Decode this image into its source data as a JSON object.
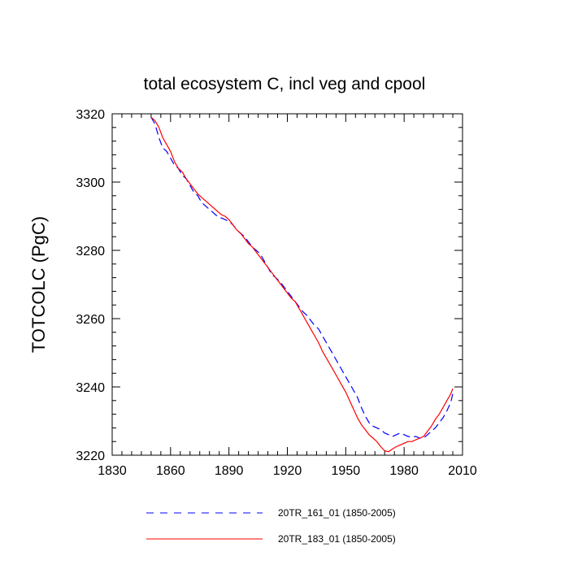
{
  "chart_data": {
    "type": "line",
    "title": "total ecosystem C, incl veg and cpool",
    "xlabel": "",
    "ylabel": "TOTCOLC  (PgC)",
    "xlim": [
      1830,
      2010
    ],
    "ylim": [
      3220,
      3320
    ],
    "xticks": [
      1830,
      1860,
      1890,
      1920,
      1950,
      1980,
      2010
    ],
    "xtick_labels": [
      "1830",
      "1860",
      "1890",
      "1920",
      "1950",
      "1980",
      "2010"
    ],
    "yticks": [
      3220,
      3240,
      3260,
      3280,
      3300,
      3320
    ],
    "ytick_labels": [
      "3220",
      "3240",
      "3260",
      "3280",
      "3300",
      "3320"
    ],
    "grid": false,
    "legend_position": "bottom",
    "series": [
      {
        "name": "20TR_161_01 (1850-2005)",
        "color": "#0000ff",
        "style": "dashed",
        "x": [
          1850,
          1852,
          1854,
          1856,
          1858,
          1860,
          1862,
          1864,
          1866,
          1868,
          1870,
          1872,
          1874,
          1876,
          1878,
          1880,
          1882,
          1884,
          1886,
          1888,
          1890,
          1892,
          1894,
          1896,
          1898,
          1900,
          1902,
          1904,
          1906,
          1908,
          1910,
          1912,
          1914,
          1916,
          1918,
          1920,
          1922,
          1924,
          1926,
          1928,
          1930,
          1932,
          1934,
          1936,
          1938,
          1940,
          1942,
          1944,
          1946,
          1948,
          1950,
          1952,
          1954,
          1956,
          1958,
          1960,
          1962,
          1964,
          1966,
          1968,
          1970,
          1972,
          1974,
          1976,
          1978,
          1980,
          1982,
          1984,
          1986,
          1988,
          1990,
          1992,
          1994,
          1996,
          1998,
          2000,
          2002,
          2004,
          2005
        ],
        "y": [
          3319,
          3317,
          3313,
          3310,
          3309,
          3307,
          3305,
          3304,
          3302,
          3301,
          3299,
          3297,
          3296,
          3294,
          3293,
          3292,
          3291,
          3290,
          3289.5,
          3289,
          3288.5,
          3287.5,
          3286,
          3285,
          3284,
          3282.5,
          3281,
          3280,
          3279,
          3277,
          3275,
          3273,
          3272,
          3271,
          3269.5,
          3268,
          3266.5,
          3265,
          3263.5,
          3262,
          3261,
          3259.5,
          3258,
          3257,
          3255,
          3253,
          3251,
          3249,
          3247,
          3245,
          3243,
          3241,
          3239,
          3237,
          3234,
          3231.5,
          3229.5,
          3228.5,
          3228,
          3227.5,
          3226.5,
          3226,
          3225.5,
          3226,
          3226.5,
          3226,
          3225.5,
          3225.3,
          3225.5,
          3225,
          3225,
          3226,
          3227,
          3228,
          3229.5,
          3231,
          3233,
          3235.5,
          3238
        ]
      },
      {
        "name": "20TR_183_01 (1850-2005)",
        "color": "#ff0000",
        "style": "solid",
        "x": [
          1850,
          1852,
          1854,
          1856,
          1858,
          1860,
          1862,
          1864,
          1866,
          1868,
          1870,
          1872,
          1874,
          1876,
          1878,
          1880,
          1882,
          1884,
          1886,
          1888,
          1890,
          1892,
          1894,
          1896,
          1898,
          1900,
          1902,
          1904,
          1906,
          1908,
          1910,
          1912,
          1914,
          1916,
          1918,
          1920,
          1922,
          1924,
          1926,
          1928,
          1930,
          1932,
          1934,
          1936,
          1938,
          1940,
          1942,
          1944,
          1946,
          1948,
          1950,
          1952,
          1954,
          1956,
          1958,
          1960,
          1962,
          1964,
          1966,
          1968,
          1970,
          1972,
          1974,
          1976,
          1978,
          1980,
          1982,
          1984,
          1986,
          1988,
          1990,
          1992,
          1994,
          1996,
          1998,
          2000,
          2002,
          2004,
          2005
        ],
        "y": [
          3319,
          3318,
          3316,
          3313,
          3311,
          3309,
          3306,
          3304,
          3303,
          3301,
          3299.5,
          3298,
          3296.5,
          3295.5,
          3294.5,
          3293.5,
          3292.5,
          3291.5,
          3290.5,
          3290,
          3289,
          3287.5,
          3286,
          3285,
          3283.5,
          3282,
          3281,
          3279.5,
          3278,
          3276.5,
          3275,
          3273.5,
          3272,
          3270.5,
          3269,
          3267.5,
          3266,
          3265,
          3263,
          3261,
          3259,
          3257,
          3255,
          3253,
          3250.5,
          3248.5,
          3246.5,
          3244.5,
          3242.5,
          3240.5,
          3238.5,
          3236,
          3233.5,
          3231,
          3229,
          3227.5,
          3226,
          3225,
          3224,
          3222.5,
          3221.3,
          3221,
          3221.8,
          3222.5,
          3223,
          3223.5,
          3224,
          3224,
          3224.5,
          3225,
          3225.5,
          3227,
          3228.5,
          3230.5,
          3232,
          3234,
          3236,
          3238,
          3239.5
        ]
      }
    ]
  }
}
